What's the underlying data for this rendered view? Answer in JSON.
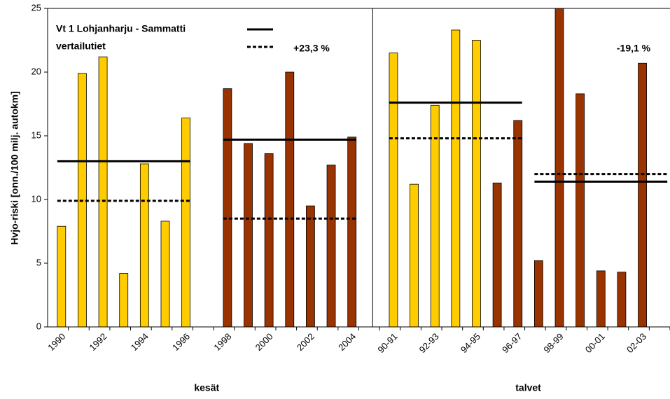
{
  "chart_data": {
    "type": "bar",
    "y_label": "Hvjo-riski [onn./100 milj. autokm]",
    "categories": [
      "1990",
      null,
      "1992",
      null,
      "1994",
      null,
      "1996",
      null,
      "1998",
      null,
      "2000",
      null,
      "2002",
      null,
      "2004",
      null,
      "90-91",
      null,
      "92-93",
      null,
      "94-95",
      null,
      "96-97",
      null,
      "98-99",
      null,
      "00-01",
      null,
      "02-03",
      null
    ],
    "series": [
      {
        "color": "#ffcc00",
        "values": [
          7.9,
          19.9,
          21.2,
          4.2,
          12.8,
          8.3,
          16.4,
          null,
          null,
          null,
          null,
          null,
          null,
          null,
          null,
          null,
          21.5,
          11.2,
          17.4,
          23.3,
          22.5,
          null,
          null,
          null,
          null,
          null,
          null,
          null,
          null,
          null
        ]
      },
      {
        "color": "#993300",
        "values": [
          null,
          null,
          null,
          null,
          null,
          null,
          null,
          null,
          18.7,
          14.4,
          13.6,
          20.0,
          9.5,
          12.7,
          14.9,
          null,
          null,
          null,
          null,
          null,
          null,
          11.3,
          16.2,
          5.2,
          25.2,
          18.3,
          4.4,
          4.3,
          20.7,
          null
        ]
      }
    ],
    "ylim": [
      0,
      25
    ],
    "yticks": [
      0,
      5,
      10,
      15,
      20,
      25
    ],
    "groups": [
      {
        "label": "kesät",
        "start": 0,
        "end": 14
      },
      {
        "label": "talvet",
        "start": 16,
        "end": 29
      }
    ],
    "legend": [
      {
        "label": "Vt 1 Lohjanharju - Sammatti",
        "style": "solid"
      },
      {
        "label": "vertailutiet",
        "style": "dotted"
      }
    ],
    "reference_lines": [
      {
        "style": "solid",
        "value": 13.0,
        "start": 0,
        "end": 6
      },
      {
        "style": "dotted",
        "value": 9.9,
        "start": 0,
        "end": 6
      },
      {
        "style": "solid",
        "value": 14.7,
        "start": 8,
        "end": 14
      },
      {
        "style": "dotted",
        "value": 8.5,
        "start": 8,
        "end": 14
      },
      {
        "style": "solid",
        "value": 17.6,
        "start": 16,
        "end": 22
      },
      {
        "style": "dotted",
        "value": 14.8,
        "start": 16,
        "end": 22
      },
      {
        "style": "solid",
        "value": 11.4,
        "start": 23,
        "end": 29
      },
      {
        "style": "dotted",
        "value": 12.0,
        "start": 23,
        "end": 29
      }
    ],
    "annotations": [
      "+23,3 %",
      "-19,1 %"
    ]
  }
}
